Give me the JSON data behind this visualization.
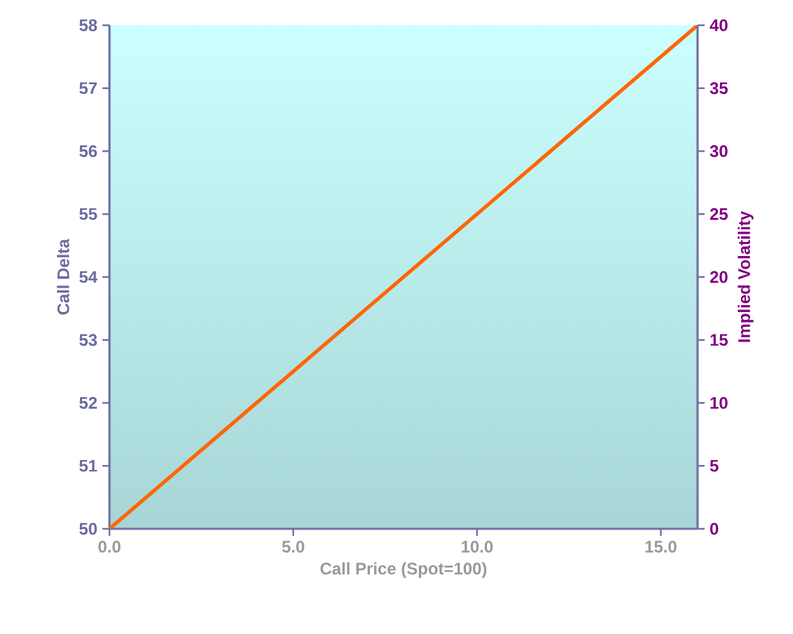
{
  "chart_data": {
    "type": "line",
    "xlabel": "Call Price (Spot=100)",
    "ylabel": "Call Delta",
    "y2label": "Implied Volatility",
    "x": [
      0,
      2,
      4,
      6,
      8,
      10,
      12,
      14,
      16
    ],
    "series": [
      {
        "color": "#ff6600",
        "values": [
          50,
          51,
          52,
          53,
          54,
          55,
          56,
          57,
          58
        ]
      }
    ],
    "xlim": [
      0,
      16
    ],
    "xticks": [
      {
        "value": 0,
        "label": "0.0"
      },
      {
        "value": 5,
        "label": "5.0"
      },
      {
        "value": 10,
        "label": "10.0"
      },
      {
        "value": 15,
        "label": "15.0"
      }
    ],
    "ylim": [
      50,
      58
    ],
    "yticks": [
      50,
      51,
      52,
      53,
      54,
      55,
      56,
      57,
      58
    ],
    "y2lim": [
      0,
      40
    ],
    "y2ticks": [
      0,
      5,
      10,
      15,
      20,
      25,
      30,
      35,
      40
    ],
    "grid": false,
    "legend": false,
    "marker": "none",
    "line_style": "solid"
  }
}
